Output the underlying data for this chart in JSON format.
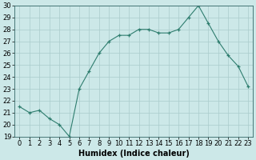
{
  "x": [
    0,
    1,
    2,
    3,
    4,
    5,
    6,
    7,
    8,
    9,
    10,
    11,
    12,
    13,
    14,
    15,
    16,
    17,
    18,
    19,
    20,
    21,
    22,
    23
  ],
  "y": [
    21.5,
    21.0,
    21.2,
    20.5,
    20.0,
    19.0,
    23.0,
    24.5,
    26.0,
    27.0,
    27.5,
    27.5,
    28.0,
    28.0,
    27.7,
    27.7,
    28.0,
    29.0,
    30.0,
    28.5,
    27.0,
    25.8,
    24.9,
    23.2
  ],
  "xlabel": "Humidex (Indice chaleur)",
  "line_color": "#2e7d6e",
  "marker": "+",
  "bg_color": "#cce8e8",
  "grid_color": "#b0d8d8",
  "ylim": [
    19,
    30
  ],
  "xlim_min": -0.5,
  "xlim_max": 23.5,
  "yticks": [
    19,
    20,
    21,
    22,
    23,
    24,
    25,
    26,
    27,
    28,
    29,
    30
  ],
  "xticks": [
    0,
    1,
    2,
    3,
    4,
    5,
    6,
    7,
    8,
    9,
    10,
    11,
    12,
    13,
    14,
    15,
    16,
    17,
    18,
    19,
    20,
    21,
    22,
    23
  ],
  "xlabel_fontsize": 7,
  "tick_fontsize": 6
}
